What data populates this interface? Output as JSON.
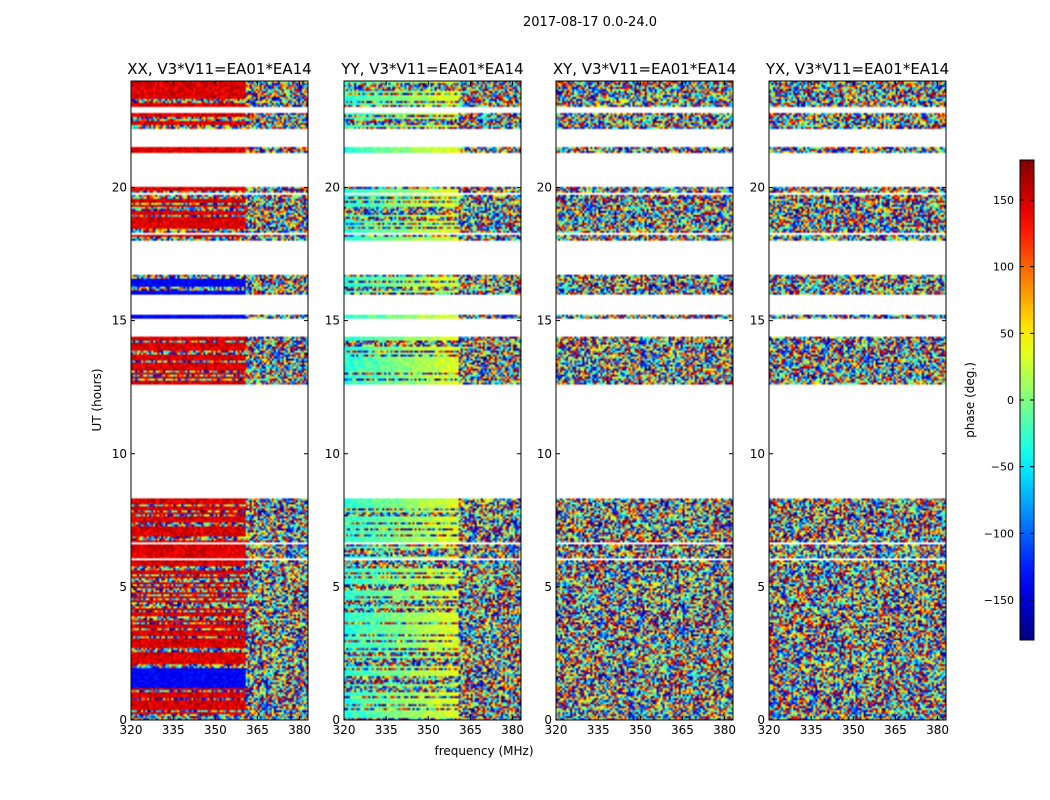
{
  "chart_data": {
    "type": "heatmap",
    "suptitle": "2017-08-17 0.0-24.0",
    "xlabel": "frequency (MHz)",
    "ylabel": "UT (hours)",
    "xlim": [
      320,
      383
    ],
    "ylim": [
      0,
      24
    ],
    "xticks": [
      320,
      335,
      350,
      365,
      380
    ],
    "yticks": [
      0,
      5,
      10,
      15,
      20
    ],
    "panels": [
      {
        "title": "XX, V3*V11=EA01*EA14",
        "polarization": "XX"
      },
      {
        "title": "YY, V3*V11=EA01*EA14",
        "polarization": "YY"
      },
      {
        "title": "XY, V3*V11=EA01*EA14",
        "polarization": "XY"
      },
      {
        "title": "YX, V3*V11=EA01*EA14",
        "polarization": "YX"
      }
    ],
    "colorbar": {
      "label": "phase (deg.)",
      "range": [
        -180,
        180
      ],
      "ticks": [
        150,
        100,
        50,
        0,
        -50,
        -100,
        -150
      ],
      "tick_labels": [
        "150",
        "100",
        "50",
        "0",
        "−50",
        "−100",
        "−150"
      ],
      "colormap": "jet"
    },
    "data_segments_hours": [
      [
        0.0,
        4.7
      ],
      [
        4.7,
        5.0
      ],
      [
        5.0,
        6.0
      ],
      [
        6.1,
        6.6
      ],
      [
        6.7,
        8.3
      ],
      [
        12.6,
        14.4
      ],
      [
        15.05,
        15.2
      ],
      [
        16.0,
        16.7
      ],
      [
        18.0,
        18.2
      ],
      [
        18.3,
        19.7
      ],
      [
        19.8,
        20.0
      ],
      [
        21.3,
        21.5
      ],
      [
        22.2,
        22.8
      ],
      [
        23.0,
        24.0
      ]
    ]
  }
}
